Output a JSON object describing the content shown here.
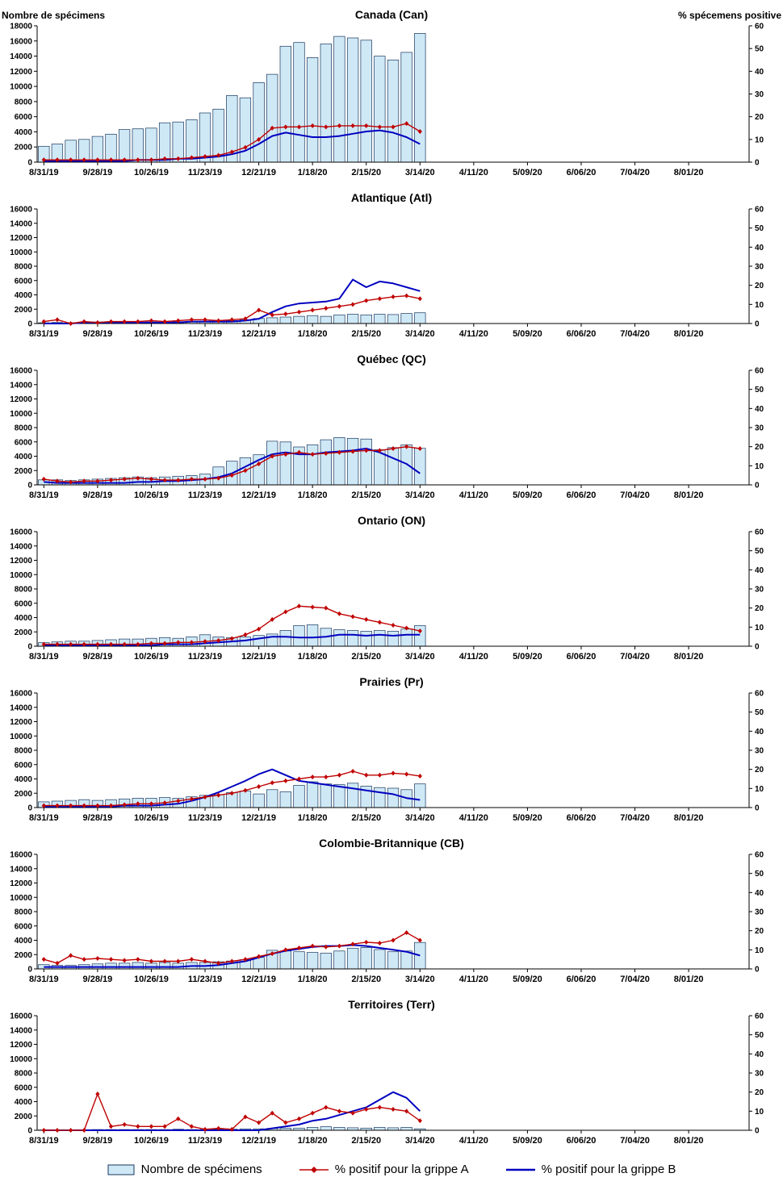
{
  "axes": {
    "left_title": "Nombre de spécimens",
    "right_title": "% spécemens positive"
  },
  "legend": {
    "bars": "Nombre de spécimens",
    "grippe_a": "% positif pour la grippe A",
    "grippe_b": "% positif pour la grippe B"
  },
  "colors": {
    "bar_fill": "#cfe8f6",
    "bar_stroke": "#17375e",
    "grippe_a": "#c00000",
    "grippe_b": "#0000c0",
    "axis": "#000000"
  },
  "chart_config": {
    "weeks": 53,
    "x_tick_interval": 4,
    "x_tick_labels": [
      "8/31/19",
      "9/28/19",
      "10/26/19",
      "11/23/19",
      "12/21/19",
      "1/18/20",
      "2/15/20",
      "3/14/20",
      "4/11/20",
      "5/09/20",
      "6/06/20",
      "7/04/20",
      "8/01/20"
    ],
    "right_ticks": [
      0,
      10,
      20,
      30,
      40,
      50,
      60
    ],
    "week_dates": [
      "8/31/19",
      "9/7/19",
      "9/14/19",
      "9/21/19",
      "9/28/19",
      "10/5/19",
      "10/12/19",
      "10/19/19",
      "10/26/19",
      "11/2/19",
      "11/9/19",
      "11/16/19",
      "11/23/19",
      "11/30/19",
      "12/7/19",
      "12/14/19",
      "12/21/19",
      "12/28/19",
      "1/4/20",
      "1/11/20",
      "1/18/20",
      "1/25/20",
      "2/1/20",
      "2/8/20",
      "2/15/20",
      "2/22/20",
      "2/29/20",
      "3/7/20",
      "3/14/20"
    ]
  },
  "chart_data": [
    {
      "type": "bar+line",
      "title": "Canada (Can)",
      "y_left_max": 18000,
      "y_left_step": 2000,
      "y_right_max": 60,
      "bars": [
        2100,
        2400,
        2900,
        3000,
        3400,
        3700,
        4300,
        4400,
        4500,
        5200,
        5300,
        5600,
        6500,
        7000,
        8800,
        8500,
        10500,
        11600,
        15300,
        15800,
        13800,
        15600,
        16600,
        16400,
        16100,
        14000,
        13500,
        14500,
        17000
      ],
      "grippe_a_pct": [
        1,
        1,
        1,
        1,
        1,
        1,
        1,
        1,
        1,
        1.5,
        1.5,
        2,
        2.5,
        3,
        4.5,
        6.5,
        10,
        15,
        15.5,
        15.5,
        16,
        15.5,
        16,
        16,
        16,
        15.5,
        15.5,
        17,
        13.5
      ],
      "grippe_b_pct": [
        0.5,
        0.5,
        0.5,
        0.5,
        0.5,
        0.5,
        0.5,
        1,
        1,
        1,
        1.5,
        1.5,
        2,
        2.5,
        3.5,
        5,
        8,
        11.5,
        13,
        12,
        11,
        11,
        11.5,
        12.5,
        13.5,
        14,
        13,
        11,
        8
      ]
    },
    {
      "type": "bar+line",
      "title": "Atlantique (Atl)",
      "y_left_max": 16000,
      "y_left_step": 2000,
      "y_right_max": 60,
      "bars": [
        100,
        150,
        100,
        100,
        100,
        100,
        150,
        150,
        200,
        200,
        250,
        300,
        300,
        350,
        400,
        500,
        700,
        800,
        900,
        1000,
        1100,
        1000,
        1200,
        1300,
        1200,
        1300,
        1250,
        1400,
        1500
      ],
      "grippe_a_pct": [
        1,
        2,
        0,
        1,
        0.5,
        1,
        1,
        1,
        1.5,
        1,
        1.5,
        2,
        2,
        1.5,
        2,
        2.5,
        7,
        4.5,
        5,
        6,
        7,
        8,
        9,
        10,
        12,
        13,
        14,
        14.5,
        13
      ],
      "grippe_b_pct": [
        0,
        0,
        0,
        0.5,
        0.5,
        0.5,
        0.5,
        0.5,
        0.5,
        0.5,
        0.5,
        1,
        1,
        1,
        1,
        1.5,
        2.5,
        6,
        9,
        10.5,
        11,
        11.5,
        13,
        23,
        19,
        22,
        21,
        19,
        17
      ]
    },
    {
      "type": "bar+line",
      "title": "Québec (QC)",
      "y_left_max": 16000,
      "y_left_step": 2000,
      "y_right_max": 60,
      "bars": [
        700,
        700,
        600,
        700,
        800,
        900,
        1000,
        1100,
        1000,
        1100,
        1200,
        1300,
        1500,
        2500,
        3300,
        3800,
        4200,
        6100,
        6000,
        5300,
        5600,
        6300,
        6600,
        6500,
        6400,
        4900,
        5200,
        5600,
        5100
      ],
      "grippe_a_pct": [
        3,
        2,
        1.5,
        2,
        2,
        2.5,
        3,
        3.5,
        3,
        2.5,
        2.5,
        3,
        3,
        3.5,
        5,
        7.5,
        11,
        15,
        16,
        17,
        16,
        16.5,
        17,
        17.5,
        18,
        18,
        19,
        20,
        19
      ],
      "grippe_b_pct": [
        1.5,
        1,
        1,
        1,
        1,
        1,
        1,
        1.5,
        1.5,
        2,
        2,
        2.5,
        3,
        4,
        6,
        9.5,
        13,
        16,
        17,
        16,
        16,
        17,
        17.5,
        18,
        19,
        17,
        14,
        11,
        6
      ]
    },
    {
      "type": "bar+line",
      "title": "Ontario (ON)",
      "y_left_max": 16000,
      "y_left_step": 2000,
      "y_right_max": 60,
      "bars": [
        500,
        600,
        700,
        700,
        800,
        900,
        1000,
        1000,
        1100,
        1200,
        1100,
        1300,
        1600,
        1300,
        1200,
        1300,
        1500,
        1700,
        2200,
        2900,
        3000,
        2500,
        2300,
        2200,
        2100,
        2200,
        2100,
        2400,
        2900
      ],
      "grippe_a_pct": [
        1,
        1,
        1,
        1,
        1,
        1,
        1,
        1,
        1.5,
        1.5,
        2,
        2,
        2.5,
        3,
        4,
        6,
        9,
        14,
        18,
        21,
        20.5,
        20,
        17,
        15.5,
        14,
        12.5,
        11,
        9.5,
        8
      ],
      "grippe_b_pct": [
        0.5,
        0.5,
        0.5,
        0.5,
        0.5,
        0.5,
        0.5,
        0.5,
        0.5,
        1,
        1,
        1,
        1.5,
        2,
        2.5,
        3,
        4,
        5,
        5,
        4.5,
        4.5,
        5,
        6,
        6,
        5.5,
        6,
        5.5,
        6,
        6
      ]
    },
    {
      "type": "bar+line",
      "title": "Prairies (Pr)",
      "y_left_max": 16000,
      "y_left_step": 2000,
      "y_right_max": 60,
      "bars": [
        800,
        900,
        1000,
        1100,
        1000,
        1100,
        1200,
        1300,
        1300,
        1400,
        1300,
        1500,
        1700,
        1800,
        2100,
        2300,
        1900,
        2500,
        2200,
        3100,
        3600,
        3300,
        3200,
        3400,
        3000,
        2800,
        2700,
        2500,
        3300
      ],
      "grippe_a_pct": [
        1,
        1,
        1,
        1,
        1,
        1,
        1.5,
        2,
        2,
        2.5,
        3.5,
        4.5,
        5.5,
        6.5,
        7.5,
        9,
        11,
        13,
        14,
        15,
        16,
        16,
        17,
        19,
        17,
        17,
        18,
        17.5,
        16.5
      ],
      "grippe_b_pct": [
        0.5,
        0.5,
        0.5,
        0.5,
        0.5,
        0.5,
        1,
        1,
        1,
        1.5,
        2,
        3.5,
        5.5,
        8,
        11,
        14,
        17.5,
        20,
        17,
        14,
        13,
        12,
        11,
        10,
        9,
        8,
        7,
        5,
        4
      ]
    },
    {
      "type": "bar+line",
      "title": "Colombie-Britannique (CB)",
      "y_left_max": 16000,
      "y_left_step": 2000,
      "y_right_max": 60,
      "bars": [
        600,
        500,
        500,
        600,
        700,
        800,
        800,
        900,
        800,
        900,
        800,
        900,
        900,
        1000,
        1100,
        1300,
        1600,
        2600,
        2500,
        2400,
        2300,
        2200,
        2500,
        2900,
        3000,
        2700,
        2400,
        2500,
        3700
      ],
      "grippe_a_pct": [
        5,
        3,
        7,
        5,
        5.5,
        5,
        4.5,
        5,
        4,
        4,
        4,
        5,
        4,
        3,
        4,
        5,
        6.5,
        8,
        10,
        11,
        12,
        11.5,
        12,
        13,
        14,
        13.5,
        15,
        19,
        15
      ],
      "grippe_b_pct": [
        1,
        1,
        1,
        1,
        1,
        1,
        1,
        1,
        1,
        1,
        1,
        1.5,
        1.5,
        2,
        3,
        4,
        6,
        8,
        9.5,
        10.5,
        11.5,
        12,
        12,
        12.5,
        12,
        11,
        10,
        9,
        7
      ]
    },
    {
      "type": "bar+line",
      "title": "Territoires (Terr)",
      "y_left_max": 16000,
      "y_left_step": 2000,
      "y_right_max": 60,
      "bars": [
        50,
        50,
        50,
        80,
        100,
        100,
        100,
        100,
        100,
        100,
        150,
        100,
        100,
        150,
        150,
        200,
        200,
        250,
        300,
        300,
        400,
        500,
        400,
        350,
        300,
        400,
        350,
        400,
        200
      ],
      "grippe_a_pct": [
        0,
        0,
        0,
        0,
        19,
        2,
        3,
        2,
        2,
        2,
        6,
        2,
        0.5,
        1,
        0.5,
        7,
        4,
        9,
        4,
        6,
        9,
        12,
        10,
        9,
        11,
        12,
        11,
        10,
        5
      ],
      "grippe_b_pct": [
        0,
        0,
        0,
        0,
        0,
        0,
        0,
        0,
        0,
        0,
        0,
        0,
        0,
        0,
        0,
        0,
        0,
        1,
        2,
        3,
        5,
        6,
        8,
        10,
        12,
        16,
        20,
        17,
        10
      ]
    }
  ]
}
